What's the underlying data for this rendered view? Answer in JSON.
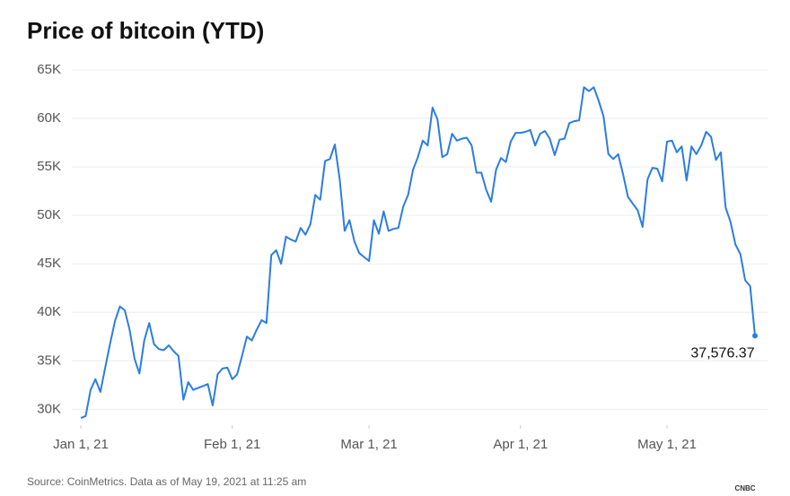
{
  "chart_data": {
    "type": "line",
    "title": "Price of bitcoin (YTD)",
    "source": "Source: CoinMetrics. Data as of May 19, 2021 at 11:25 am",
    "logo": "CNBC",
    "color": "#2b7de1",
    "grid": true,
    "x": [
      "2021-01-01",
      "2021-01-02",
      "2021-01-03",
      "2021-01-04",
      "2021-01-05",
      "2021-01-06",
      "2021-01-07",
      "2021-01-08",
      "2021-01-09",
      "2021-01-10",
      "2021-01-11",
      "2021-01-12",
      "2021-01-13",
      "2021-01-14",
      "2021-01-15",
      "2021-01-16",
      "2021-01-17",
      "2021-01-18",
      "2021-01-19",
      "2021-01-20",
      "2021-01-21",
      "2021-01-22",
      "2021-01-23",
      "2021-01-24",
      "2021-01-25",
      "2021-01-26",
      "2021-01-27",
      "2021-01-28",
      "2021-01-29",
      "2021-01-30",
      "2021-01-31",
      "2021-02-01",
      "2021-02-02",
      "2021-02-03",
      "2021-02-04",
      "2021-02-05",
      "2021-02-06",
      "2021-02-07",
      "2021-02-08",
      "2021-02-09",
      "2021-02-10",
      "2021-02-11",
      "2021-02-12",
      "2021-02-13",
      "2021-02-14",
      "2021-02-15",
      "2021-02-16",
      "2021-02-17",
      "2021-02-18",
      "2021-02-19",
      "2021-02-20",
      "2021-02-21",
      "2021-02-22",
      "2021-02-23",
      "2021-02-24",
      "2021-02-25",
      "2021-02-26",
      "2021-02-27",
      "2021-02-28",
      "2021-03-01",
      "2021-03-02",
      "2021-03-03",
      "2021-03-04",
      "2021-03-05",
      "2021-03-06",
      "2021-03-07",
      "2021-03-08",
      "2021-03-09",
      "2021-03-10",
      "2021-03-11",
      "2021-03-12",
      "2021-03-13",
      "2021-03-14",
      "2021-03-15",
      "2021-03-16",
      "2021-03-17",
      "2021-03-18",
      "2021-03-19",
      "2021-03-20",
      "2021-03-21",
      "2021-03-22",
      "2021-03-23",
      "2021-03-24",
      "2021-03-25",
      "2021-03-26",
      "2021-03-27",
      "2021-03-28",
      "2021-03-29",
      "2021-03-30",
      "2021-03-31",
      "2021-04-01",
      "2021-04-02",
      "2021-04-03",
      "2021-04-04",
      "2021-04-05",
      "2021-04-06",
      "2021-04-07",
      "2021-04-08",
      "2021-04-09",
      "2021-04-10",
      "2021-04-11",
      "2021-04-12",
      "2021-04-13",
      "2021-04-14",
      "2021-04-15",
      "2021-04-16",
      "2021-04-17",
      "2021-04-18",
      "2021-04-19",
      "2021-04-20",
      "2021-04-21",
      "2021-04-22",
      "2021-04-23",
      "2021-04-24",
      "2021-04-25",
      "2021-04-26",
      "2021-04-27",
      "2021-04-28",
      "2021-04-29",
      "2021-04-30",
      "2021-05-01",
      "2021-05-02",
      "2021-05-03",
      "2021-05-04",
      "2021-05-05",
      "2021-05-06",
      "2021-05-07",
      "2021-05-08",
      "2021-05-09",
      "2021-05-10",
      "2021-05-11",
      "2021-05-12",
      "2021-05-13",
      "2021-05-14",
      "2021-05-15",
      "2021-05-16",
      "2021-05-17",
      "2021-05-18",
      "2021-05-19"
    ],
    "values": [
      29100,
      29300,
      32000,
      33100,
      31800,
      34300,
      36800,
      39100,
      40600,
      40200,
      38200,
      35200,
      33700,
      37100,
      38900,
      36700,
      36200,
      36100,
      36600,
      36000,
      35500,
      31000,
      32800,
      32000,
      32200,
      32400,
      32600,
      30400,
      33600,
      34200,
      34300,
      33100,
      33600,
      35500,
      37500,
      37100,
      38200,
      39200,
      38900,
      45900,
      46400,
      45000,
      47800,
      47500,
      47300,
      48700,
      48000,
      49100,
      52100,
      51600,
      55600,
      55800,
      57300,
      53700,
      48400,
      49500,
      47300,
      46100,
      45700,
      45300,
      49500,
      48100,
      50400,
      48400,
      48600,
      48700,
      50900,
      52100,
      54700,
      56000,
      57700,
      57200,
      61100,
      59900,
      56000,
      56300,
      58400,
      57700,
      57900,
      58000,
      57200,
      54400,
      54400,
      52600,
      51400,
      54700,
      55900,
      55500,
      57600,
      58500,
      58500,
      58600,
      58800,
      57200,
      58400,
      58700,
      57900,
      56200,
      57800,
      57900,
      59500,
      59700,
      59800,
      63200,
      62800,
      63200,
      61800,
      60200,
      56300,
      55800,
      56300,
      54200,
      51900,
      51200,
      50500,
      48800,
      53700,
      54900,
      54800,
      53500,
      57600,
      57700,
      56500,
      57100,
      53600,
      57100,
      56300,
      57200,
      58600,
      58100,
      55700,
      56500,
      50800,
      49300,
      47000,
      46000,
      43300,
      42700,
      37576.37
    ],
    "value_labels": [
      null,
      null,
      null,
      null,
      null,
      null,
      null,
      null,
      null,
      null,
      null,
      null,
      null,
      null,
      null,
      null,
      null,
      null,
      null,
      null,
      null,
      null,
      null,
      null,
      null,
      null,
      null,
      null,
      null,
      null,
      null,
      null,
      null,
      null,
      null,
      null,
      null,
      null,
      null,
      null,
      null,
      null,
      null,
      null,
      null,
      null,
      null,
      null,
      null,
      null,
      null,
      null,
      null,
      null,
      null,
      null,
      null,
      null,
      null,
      null,
      null,
      null,
      null,
      null,
      null,
      null,
      null,
      null,
      null,
      null,
      null,
      null,
      null,
      null,
      null,
      null,
      null,
      null,
      null,
      null,
      null,
      null,
      null,
      null,
      null,
      null,
      null,
      null,
      null,
      null,
      null,
      null,
      null,
      null,
      null,
      null,
      null,
      null,
      null,
      null,
      null,
      null,
      null,
      null,
      null,
      null,
      null,
      null,
      null,
      null,
      null,
      null,
      null,
      null,
      null,
      null,
      null,
      null,
      null,
      null,
      null,
      null,
      null,
      null,
      null,
      null,
      null,
      null,
      null,
      null,
      null,
      null,
      null,
      null,
      null,
      null,
      null,
      null,
      "37,576.37"
    ],
    "xlim": [
      "2021-01-01",
      "2021-05-19"
    ],
    "xticks": [
      {
        "value": "2021-01-01",
        "label": "Jan 1, 21"
      },
      {
        "value": "2021-02-01",
        "label": "Feb 1, 21"
      },
      {
        "value": "2021-03-01",
        "label": "Mar 1, 21"
      },
      {
        "value": "2021-04-01",
        "label": "Apr 1, 21"
      },
      {
        "value": "2021-05-01",
        "label": "May 1, 21"
      }
    ],
    "ylim": [
      28000,
      66000
    ],
    "yticks": [
      {
        "value": 30000,
        "label": "30K"
      },
      {
        "value": 35000,
        "label": "35K"
      },
      {
        "value": 40000,
        "label": "40K"
      },
      {
        "value": 45000,
        "label": "45K"
      },
      {
        "value": 50000,
        "label": "50K"
      },
      {
        "value": 55000,
        "label": "55K"
      },
      {
        "value": 60000,
        "label": "60K"
      },
      {
        "value": 65000,
        "label": "65K"
      }
    ]
  }
}
